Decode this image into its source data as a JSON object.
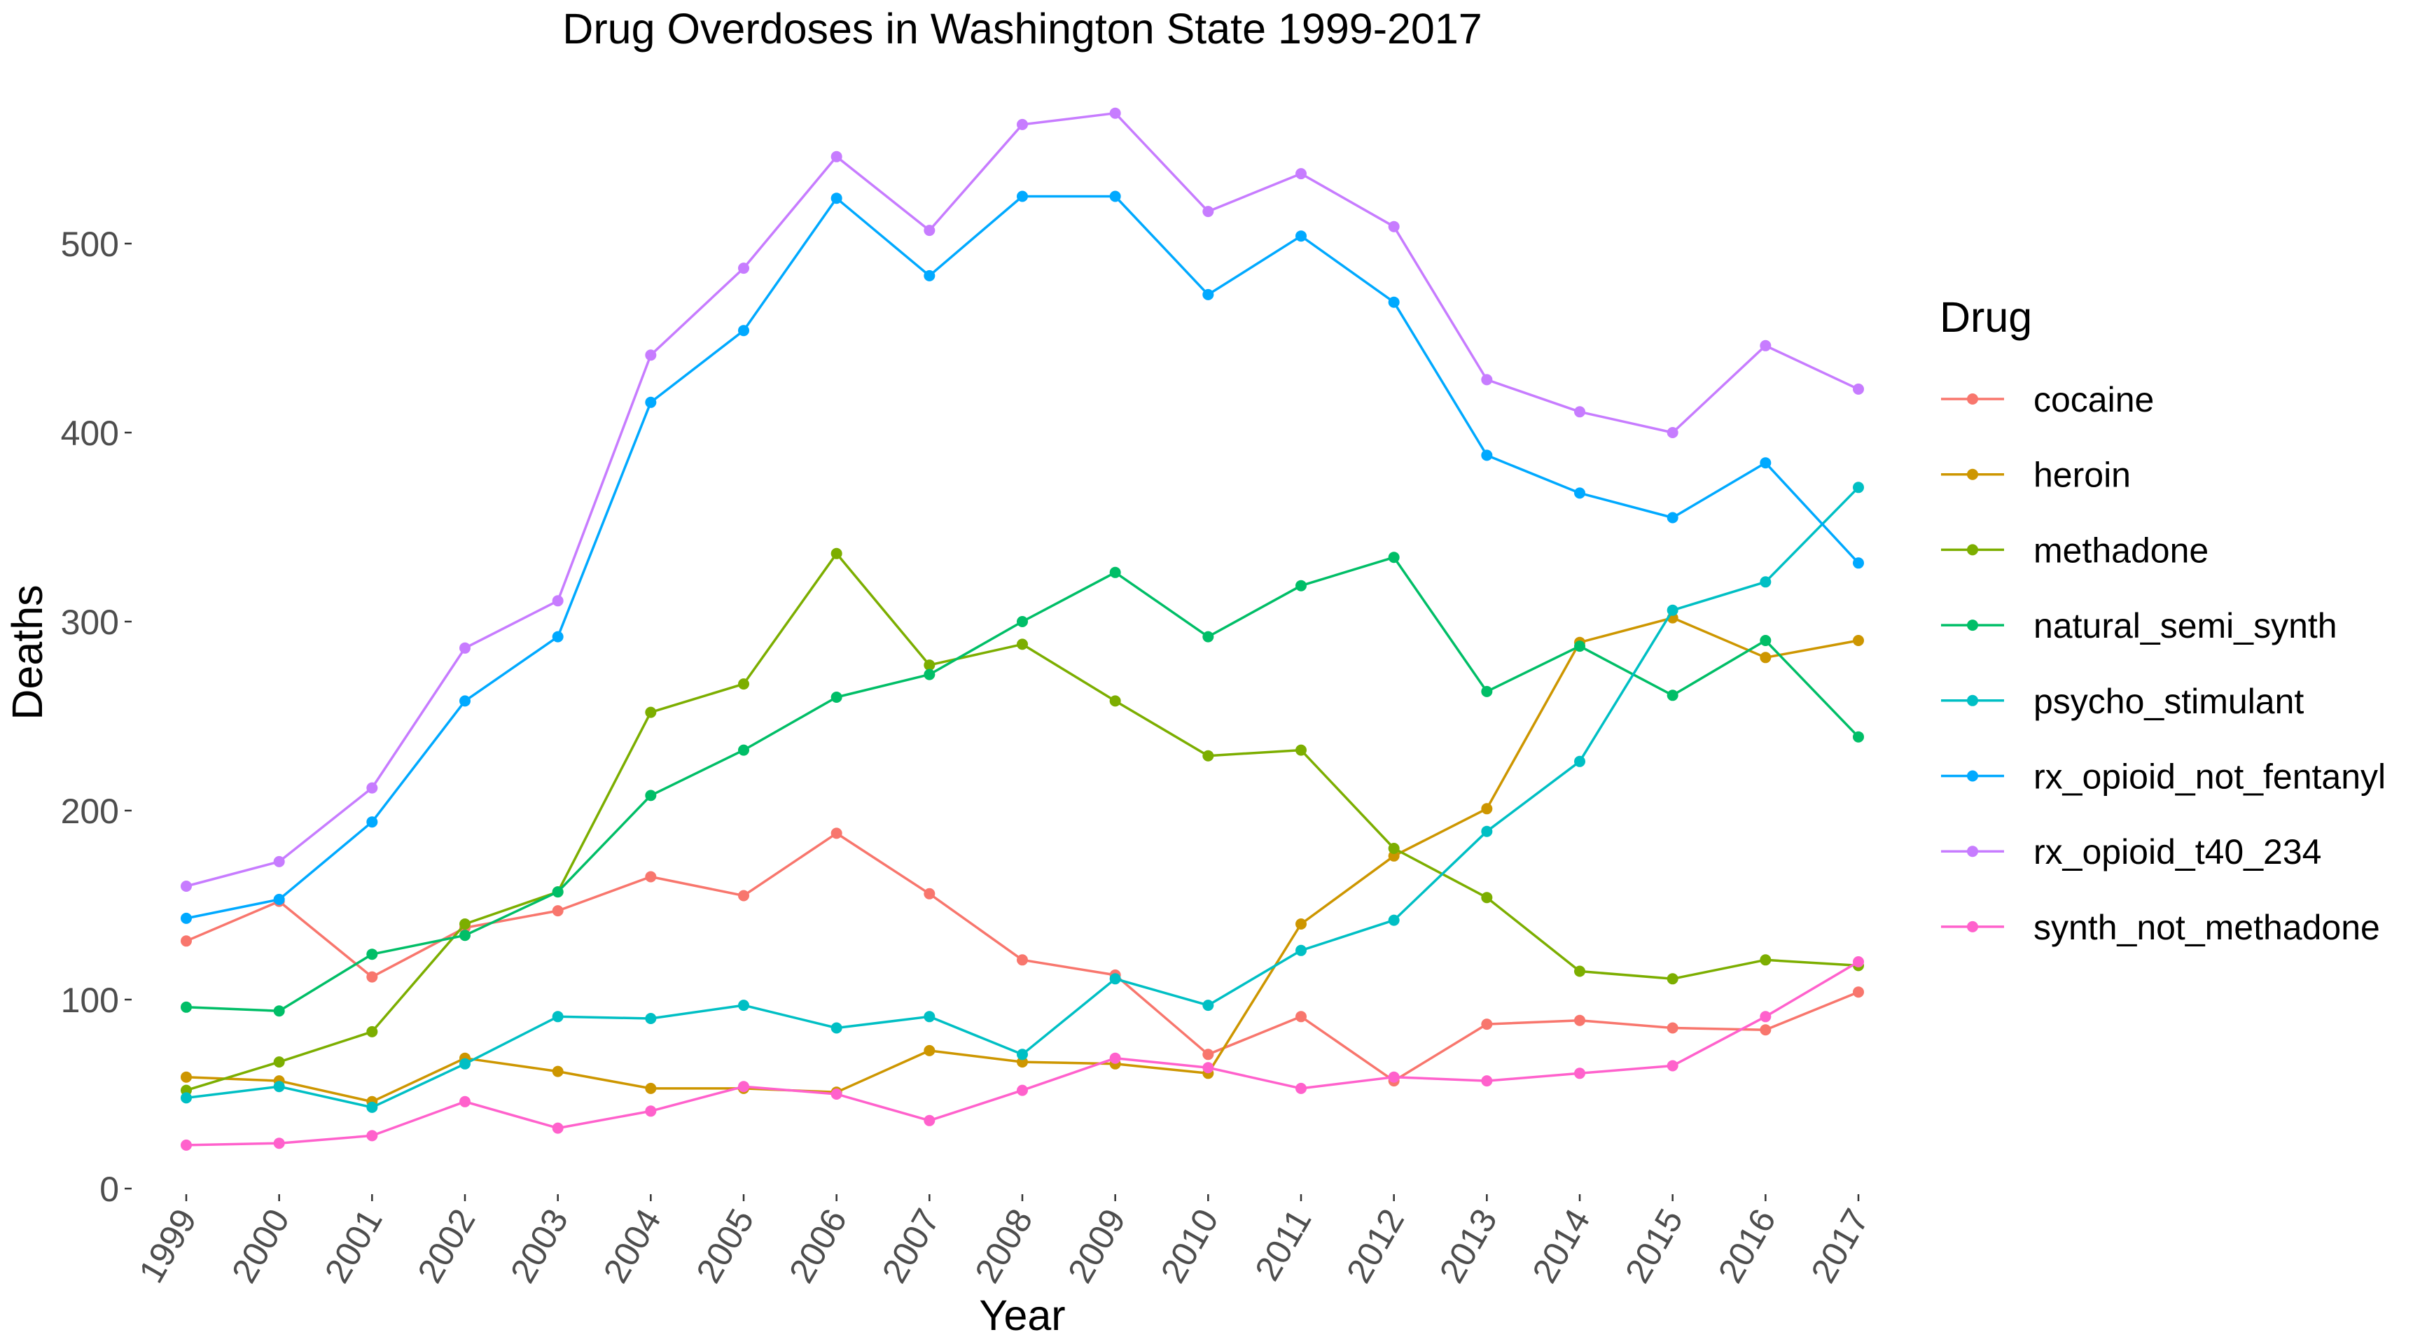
{
  "chart_data": {
    "type": "line",
    "title": "Drug Overdoses in Washington State 1999-2017",
    "xlabel": "Year",
    "ylabel": "Deaths",
    "x": [
      "1999",
      "2000",
      "2001",
      "2002",
      "2003",
      "2004",
      "2005",
      "2006",
      "2007",
      "2008",
      "2009",
      "2010",
      "2011",
      "2012",
      "2013",
      "2014",
      "2015",
      "2016",
      "2017"
    ],
    "ylim": [
      0,
      600
    ],
    "yticks": [
      0,
      100,
      200,
      300,
      400,
      500
    ],
    "grid": false,
    "legend": {
      "title": "Drug",
      "position": "right"
    },
    "series": [
      {
        "name": "cocaine",
        "color": "#F8766D",
        "values": [
          131,
          152,
          112,
          138,
          147,
          165,
          155,
          188,
          156,
          121,
          113,
          71,
          91,
          57,
          87,
          89,
          85,
          84,
          104
        ]
      },
      {
        "name": "heroin",
        "color": "#CD9600",
        "values": [
          59,
          57,
          46,
          69,
          62,
          53,
          53,
          51,
          73,
          67,
          66,
          61,
          140,
          176,
          201,
          289,
          302,
          281,
          290
        ]
      },
      {
        "name": "methadone",
        "color": "#7CAE00",
        "values": [
          52,
          67,
          83,
          140,
          157,
          252,
          267,
          336,
          277,
          288,
          258,
          229,
          232,
          180,
          154,
          115,
          111,
          121,
          118
        ]
      },
      {
        "name": "natural_semi_synth",
        "color": "#00BE67",
        "values": [
          96,
          94,
          124,
          134,
          157,
          208,
          232,
          260,
          272,
          300,
          326,
          292,
          319,
          334,
          263,
          287,
          261,
          290,
          239
        ]
      },
      {
        "name": "psycho_stimulant",
        "color": "#00BFC4",
        "values": [
          48,
          54,
          43,
          66,
          91,
          90,
          97,
          85,
          91,
          71,
          111,
          97,
          126,
          142,
          189,
          226,
          306,
          321,
          371
        ]
      },
      {
        "name": "rx_opioid_not_fentanyl",
        "color": "#00A9FF",
        "values": [
          143,
          153,
          194,
          258,
          292,
          416,
          454,
          524,
          483,
          525,
          525,
          473,
          504,
          469,
          388,
          368,
          355,
          384,
          331
        ]
      },
      {
        "name": "rx_opioid_t40_234",
        "color": "#C77CFF",
        "values": [
          160,
          173,
          212,
          286,
          311,
          441,
          487,
          546,
          507,
          563,
          569,
          517,
          537,
          509,
          428,
          411,
          400,
          446,
          423
        ]
      },
      {
        "name": "synth_not_methadone",
        "color": "#FF61CC",
        "values": [
          23,
          24,
          28,
          46,
          32,
          41,
          54,
          50,
          36,
          52,
          69,
          64,
          53,
          59,
          57,
          61,
          65,
          91,
          120
        ]
      }
    ]
  }
}
